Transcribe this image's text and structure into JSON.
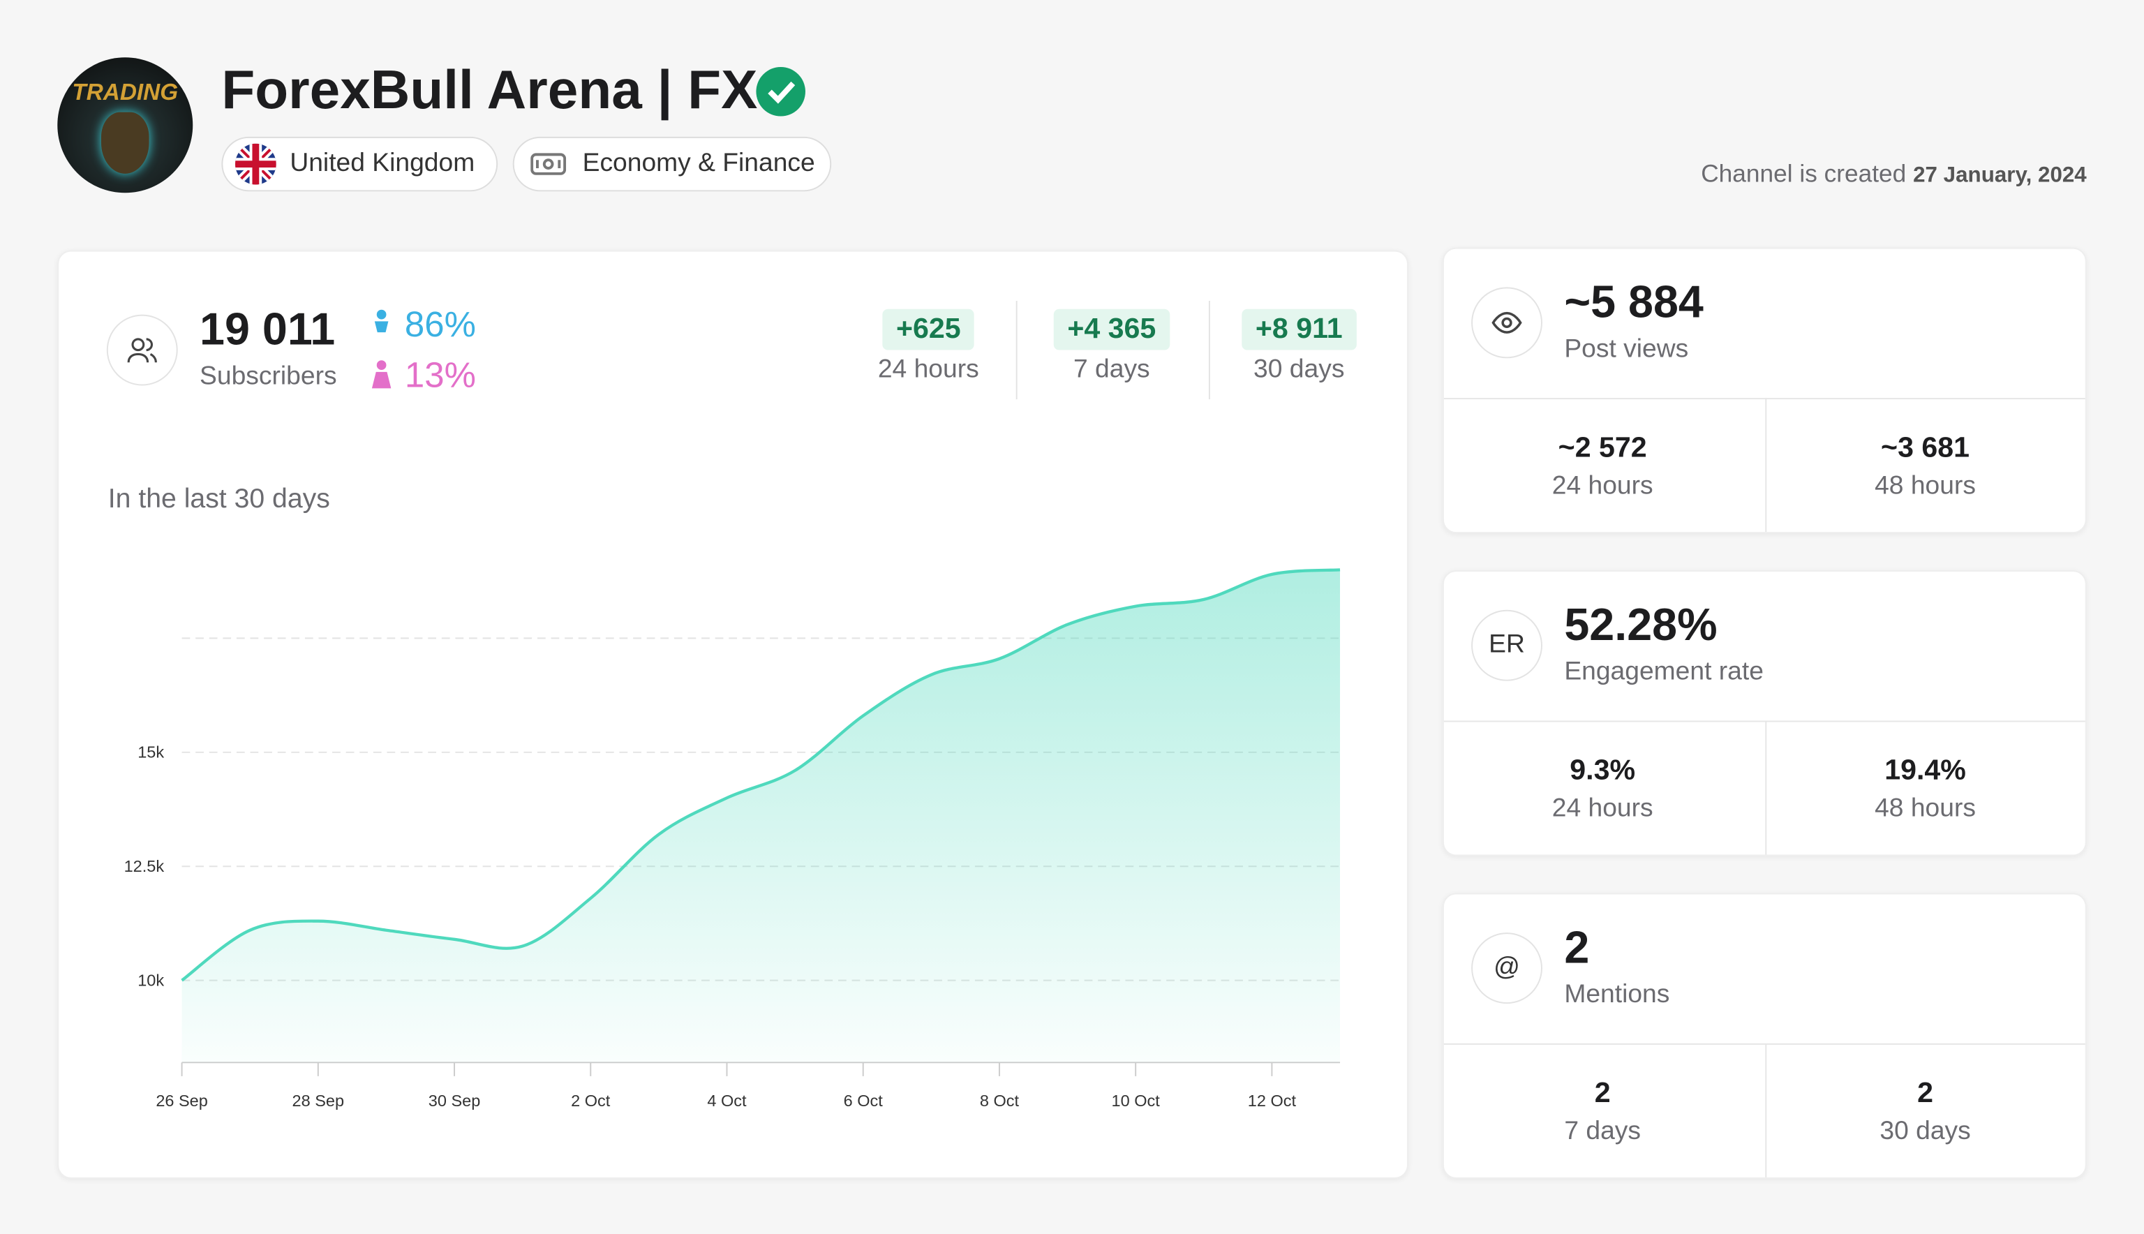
{
  "header": {
    "avatar_text": "TRADING",
    "title": "ForexBull Arena | FX",
    "country": "United Kingdom",
    "category": "Economy & Finance",
    "created_label": "Channel is created",
    "created_date": "27 January, 2024"
  },
  "subscribers": {
    "value": "19 011",
    "label": "Subscribers",
    "male": "86%",
    "female": "13%",
    "growth": [
      {
        "value": "+625",
        "period": "24 hours"
      },
      {
        "value": "+4 365",
        "period": "7 days"
      },
      {
        "value": "+8 911",
        "period": "30 days"
      }
    ]
  },
  "chart": {
    "type": "line",
    "title": "In the last 30 days",
    "color": "#4fd9bd",
    "categories": [
      "26 Sep",
      null,
      "28 Sep",
      null,
      "30 Sep",
      null,
      "2 Oct",
      null,
      "4 Oct",
      null,
      "6 Oct",
      null,
      "8 Oct",
      null,
      "10 Oct",
      null,
      "12 Oct",
      null
    ],
    "values": [
      10000,
      11100,
      11300,
      11100,
      10900,
      10750,
      11800,
      13200,
      14000,
      14600,
      15800,
      16700,
      17050,
      17800,
      18200,
      18350,
      18900,
      19000
    ],
    "ylim": [
      8200,
      19500
    ],
    "yticks": [
      {
        "value": 10000,
        "label": "10k"
      },
      {
        "value": 12500,
        "label": "12.5k"
      },
      {
        "value": 15000,
        "label": "15k"
      },
      {
        "value": 17500,
        "label": null
      }
    ],
    "grid": true
  },
  "metrics": [
    {
      "value": "~5 884",
      "label": "Post views",
      "cells": [
        {
          "value": "~2 572",
          "label": "24 hours"
        },
        {
          "value": "~3 681",
          "label": "48 hours"
        }
      ]
    },
    {
      "icon": "ER",
      "value": "52.28%",
      "label": "Engagement rate",
      "cells": [
        {
          "value": "9.3%",
          "label": "24 hours"
        },
        {
          "value": "19.4%",
          "label": "48 hours"
        }
      ]
    },
    {
      "icon": "@",
      "value": "2",
      "label": "Mentions",
      "cells": [
        {
          "value": "2",
          "label": "7 days"
        },
        {
          "value": "2",
          "label": "30 days"
        }
      ]
    }
  ]
}
